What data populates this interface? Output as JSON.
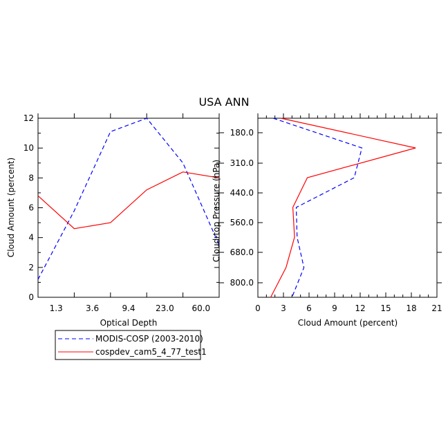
{
  "figure": {
    "title": "USA ANN"
  },
  "legend": {
    "items": [
      {
        "label": "MODIS-COSP (2003-2010)",
        "color": "#0000ff",
        "dash": "dashed"
      },
      {
        "label": "cospdev_cam5_4_77_test1",
        "color": "#ff0000",
        "dash": "solid"
      }
    ]
  },
  "chart_data": [
    {
      "type": "line",
      "title": "",
      "xlabel": "Optical Depth",
      "ylabel": "Cloud Amount (percent)",
      "x_tick_labels": [
        "1.3",
        "3.6",
        "9.4",
        "23.0",
        "60.0"
      ],
      "y_ticks": [
        0,
        2,
        4,
        6,
        8,
        10,
        12
      ],
      "ylim": [
        0,
        12
      ],
      "x": [
        0,
        1,
        2,
        3,
        4,
        5
      ],
      "series": [
        {
          "name": "MODIS-COSP (2003-2010)",
          "color": "#0000ff",
          "dash": "dashed",
          "values": [
            1.2,
            5.8,
            11.1,
            12.0,
            9.0,
            3.5
          ]
        },
        {
          "name": "cospdev_cam5_4_77_test1",
          "color": "#ff0000",
          "dash": "solid",
          "values": [
            6.8,
            4.6,
            5.0,
            7.2,
            8.4,
            8.0
          ]
        }
      ]
    },
    {
      "type": "line",
      "title": "",
      "xlabel": "Cloud Amount (percent)",
      "ylabel": "Cloud-top Pressure (hPa)",
      "x_ticks": [
        0,
        3,
        6,
        9,
        12,
        15,
        18,
        21
      ],
      "xlim": [
        0,
        21
      ],
      "y_tick_labels": [
        "180.0",
        "310.0",
        "440.0",
        "560.0",
        "680.0",
        "800.0"
      ],
      "y_inverted": true,
      "y": [
        0,
        1,
        2,
        3,
        4,
        5,
        6
      ],
      "series": [
        {
          "name": "MODIS-COSP (2003-2010)",
          "color": "#0000ff",
          "dash": "dashed",
          "values": [
            1.8,
            12.2,
            11.3,
            4.5,
            4.6,
            5.4,
            4.0
          ]
        },
        {
          "name": "cospdev_cam5_4_77_test1",
          "color": "#ff0000",
          "dash": "solid",
          "values": [
            2.7,
            18.5,
            5.8,
            4.1,
            4.3,
            3.3,
            1.5
          ]
        }
      ]
    }
  ]
}
